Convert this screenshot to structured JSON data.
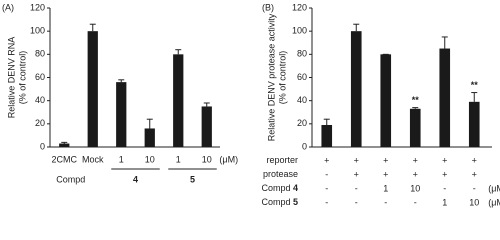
{
  "chart_data": [
    {
      "type": "bar",
      "panel_label": "(A)",
      "y_label": [
        "Relative DENV RNA",
        "(% of control)"
      ],
      "categories": [
        "2CMC",
        "Mock",
        "1",
        "10",
        "1",
        "10"
      ],
      "unit_label": "(μM)",
      "group_title": "Compd",
      "groups": [
        {
          "label": "4",
          "members": [
            2,
            3
          ]
        },
        {
          "label": "5",
          "members": [
            4,
            5
          ]
        }
      ],
      "values": [
        3,
        100,
        56,
        16,
        80,
        35
      ],
      "errors": [
        1,
        6,
        2,
        8,
        4,
        3
      ],
      "color": "#1a1a1a",
      "ylim": [
        0,
        120
      ],
      "yticks": [
        0,
        20,
        40,
        60,
        80,
        100,
        120
      ],
      "grid": false
    },
    {
      "type": "bar",
      "panel_label": "(B)",
      "y_label": [
        "Relative DENV protease activity",
        "(% of control)"
      ],
      "values": [
        19,
        100,
        80,
        33,
        85,
        39
      ],
      "errors": [
        5,
        6,
        0,
        1,
        10,
        8
      ],
      "significance": [
        null,
        null,
        null,
        "**",
        null,
        "**"
      ],
      "color": "#1a1a1a",
      "ylim": [
        0,
        120
      ],
      "yticks": [
        0,
        20,
        40,
        60,
        80,
        100,
        120
      ],
      "grid": false,
      "conditions": [
        {
          "label": "reporter",
          "cells": [
            "+",
            "+",
            "+",
            "+",
            "+",
            "+"
          ]
        },
        {
          "label": "protease",
          "cells": [
            "-",
            "+",
            "+",
            "+",
            "+",
            "+"
          ]
        },
        {
          "label": "Compd",
          "compound": "4",
          "cells": [
            "-",
            "-",
            "1",
            "10",
            "-",
            "-"
          ],
          "unit": "(μM)"
        },
        {
          "label": "Compd",
          "compound": "5",
          "cells": [
            "-",
            "-",
            "-",
            "-",
            "1",
            "10"
          ],
          "unit": "(μM)"
        }
      ]
    }
  ]
}
